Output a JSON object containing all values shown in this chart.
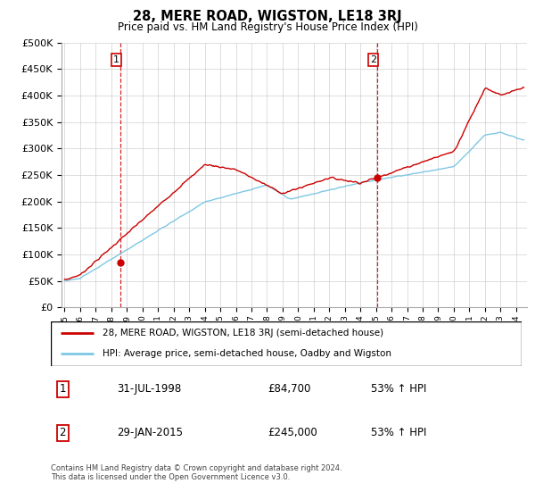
{
  "title": "28, MERE ROAD, WIGSTON, LE18 3RJ",
  "subtitle": "Price paid vs. HM Land Registry's House Price Index (HPI)",
  "footer": "Contains HM Land Registry data © Crown copyright and database right 2024.\nThis data is licensed under the Open Government Licence v3.0.",
  "legend_line1": "28, MERE ROAD, WIGSTON, LE18 3RJ (semi-detached house)",
  "legend_line2": "HPI: Average price, semi-detached house, Oadby and Wigston",
  "sale1_label": "1",
  "sale1_date": "31-JUL-1998",
  "sale1_price": "£84,700",
  "sale1_hpi": "53% ↑ HPI",
  "sale1_year": 1998.58,
  "sale1_value": 84700,
  "sale2_label": "2",
  "sale2_date": "29-JAN-2015",
  "sale2_price": "£245,000",
  "sale2_hpi": "53% ↑ HPI",
  "sale2_year": 2015.08,
  "sale2_value": 245000,
  "hpi_color": "#7ec8e3",
  "price_color": "#cc0000",
  "vline_color": "#cc0000",
  "ylim": [
    0,
    500000
  ],
  "yticks": [
    0,
    50000,
    100000,
    150000,
    200000,
    250000,
    300000,
    350000,
    400000,
    450000,
    500000
  ],
  "background_color": "#ffffff",
  "grid_color": "#d0d0d0",
  "xlim_left": 1994.8,
  "xlim_right": 2024.7
}
